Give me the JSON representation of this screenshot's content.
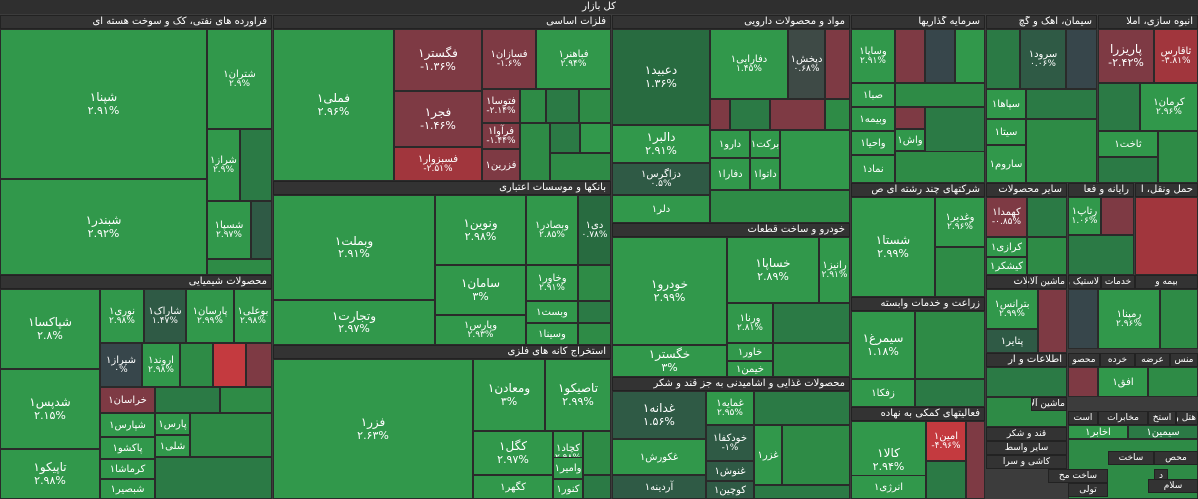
{
  "header_title": "کل بازار",
  "colors": {
    "g1": "#2e8b46",
    "g2": "#31984b",
    "g3": "#2b7a45",
    "g4": "#286b40",
    "dk": "#2f5a45",
    "m": "#3e4a46",
    "r1": "#7e3a44",
    "r2": "#a1363d",
    "r3": "#c43a3f",
    "gr": "#37464b"
  },
  "sections": [
    {
      "id": "oil",
      "label": "فراورده های نفتی، کک و سوخت هسته ای"
    },
    {
      "id": "metals",
      "label": "فلزات اساسی"
    },
    {
      "id": "pharma",
      "label": "مواد و محصولات دارویی"
    },
    {
      "id": "invest",
      "label": "سرمایه گذاریها"
    },
    {
      "id": "cement",
      "label": "سیمان، آهک و گچ"
    },
    {
      "id": "construct",
      "label": "انبوه سازی، املا"
    },
    {
      "id": "banks",
      "label": "بانکها و موسسات اعتباری"
    },
    {
      "id": "multi",
      "label": "شرکتهای چند رشته ای ص"
    },
    {
      "id": "other",
      "label": "سایر محصولات"
    },
    {
      "id": "it",
      "label": "رایانه و فعا"
    },
    {
      "id": "transport",
      "label": "حمل ونقل، ا"
    },
    {
      "id": "auto",
      "label": "خودرو و ساخت قطعات"
    },
    {
      "id": "chem",
      "label": "محصولات شیمیایی"
    },
    {
      "id": "agri",
      "label": "زراعت و خدمات وابسته"
    },
    {
      "id": "machine",
      "label": "ماشین آلات"
    },
    {
      "id": "mining",
      "label": "استخراج کانه های فلزی"
    },
    {
      "id": "food",
      "label": "محصولات غذایی و آشامیدنی به جز قند و شکر"
    },
    {
      "id": "info",
      "label": "اطلاعات و ار"
    },
    {
      "id": "finance",
      "label": "فعالیتهای کمکی به نهاده"
    }
  ],
  "cells": [
    {
      "id": "shpna",
      "name": "شپنا۱",
      "pct": "۲.۹۱%"
    },
    {
      "id": "shtran",
      "name": "شتران۱",
      "pct": "۲.۹%"
    },
    {
      "id": "shiraz",
      "name": "شراز۱",
      "pct": "۲.۹%"
    },
    {
      "id": "shbndr",
      "name": "شبندر۱",
      "pct": "۲.۹۲%"
    },
    {
      "id": "shsepa",
      "name": "شسپا۱",
      "pct": "۲.۹۷%"
    },
    {
      "id": "fmli",
      "name": "فملی۱",
      "pct": "۲.۹۶%"
    },
    {
      "id": "fgstr",
      "name": "فگستر۱",
      "pct": "-۱.۳۶%"
    },
    {
      "id": "fsazan",
      "name": "فسازان۱",
      "pct": "-۱.۶%"
    },
    {
      "id": "fbahonar",
      "name": "فباهنر۱",
      "pct": "۲.۹۴%"
    },
    {
      "id": "fjr",
      "name": "فجر۱",
      "pct": "-۱.۴۶%"
    },
    {
      "id": "ftosa",
      "name": "فتوسا۱",
      "pct": "-۲.۱۴%"
    },
    {
      "id": "farf",
      "name": "فرآوا۱",
      "pct": "-۱.۴۴%"
    },
    {
      "id": "fsbzvar",
      "name": "فسبزوار۱",
      "pct": "-۲.۵۱%"
    },
    {
      "id": "fzrin",
      "name": "فزرین۱",
      "pct": ""
    },
    {
      "id": "dabid",
      "name": "دعبید۱",
      "pct": "۱.۳۶%"
    },
    {
      "id": "dfarabi",
      "name": "دفارابی۱",
      "pct": "۱.۴۵%"
    },
    {
      "id": "dpakhsh",
      "name": "دپخش۱",
      "pct": "۰.۶۸%"
    },
    {
      "id": "dalbr",
      "name": "دالبر۱",
      "pct": "۲.۹۱%"
    },
    {
      "id": "darou",
      "name": "دارو۱",
      "pct": ""
    },
    {
      "id": "barakat",
      "name": "برکت۱",
      "pct": ""
    },
    {
      "id": "dzagros",
      "name": "دزاگرس۱",
      "pct": "۰.۵%"
    },
    {
      "id": "dfara",
      "name": "دفارا۱",
      "pct": ""
    },
    {
      "id": "dlra",
      "name": "دلر۱",
      "pct": ""
    },
    {
      "id": "dtoli",
      "name": "داتوا۱",
      "pct": ""
    },
    {
      "id": "vsapa",
      "name": "وساپا۱",
      "pct": "۲.۹۱%"
    },
    {
      "id": "sba",
      "name": "صبا۱",
      "pct": ""
    },
    {
      "id": "vbime",
      "name": "وبیمه۱",
      "pct": ""
    },
    {
      "id": "vahia",
      "name": "واحیا۱",
      "pct": ""
    },
    {
      "id": "vash",
      "name": "واش۱",
      "pct": ""
    },
    {
      "id": "nmad",
      "name": "نماد۱",
      "pct": ""
    },
    {
      "id": "srood",
      "name": "سرود۱",
      "pct": "۰.۰۶%"
    },
    {
      "id": "spaha",
      "name": "سپاها۱",
      "pct": ""
    },
    {
      "id": "sita",
      "name": "سیتا۱",
      "pct": ""
    },
    {
      "id": "sarom",
      "name": "ساروم۱",
      "pct": ""
    },
    {
      "id": "parizra",
      "name": "پاریزرا",
      "pct": "-۲.۴۲%"
    },
    {
      "id": "sarom2",
      "name": "ثاقارس",
      "pct": "-۳.۸۱%"
    },
    {
      "id": "karman",
      "name": "کرمان۱",
      "pct": "۲.۹۶%"
    },
    {
      "id": "thakht",
      "name": "ثاخت۱",
      "pct": ""
    },
    {
      "id": "vbmlt",
      "name": "وبملت۱",
      "pct": "۲.۹۱%"
    },
    {
      "id": "vnovin",
      "name": "ونوین۱",
      "pct": "۲.۹۸%"
    },
    {
      "id": "vspdar",
      "name": "وبصادر۱",
      "pct": "۲.۸۵%"
    },
    {
      "id": "dey",
      "name": "دی۱",
      "pct": "۰.۷۸%"
    },
    {
      "id": "vkhavr",
      "name": "وخاور۱",
      "pct": "۲.۹۱%"
    },
    {
      "id": "saman",
      "name": "سامان۱",
      "pct": "۳%"
    },
    {
      "id": "vbst",
      "name": "وبست۱",
      "pct": ""
    },
    {
      "id": "vtjart",
      "name": "وتجارت۱",
      "pct": "۲.۹۷%"
    },
    {
      "id": "vpars",
      "name": "وپارس۱",
      "pct": "۲.۹۳%"
    },
    {
      "id": "vsina",
      "name": "وسینا۱",
      "pct": ""
    },
    {
      "id": "shstaa",
      "name": "شستا۱",
      "pct": "۲.۹۹%"
    },
    {
      "id": "vghadir",
      "name": "وغدیر۱",
      "pct": "۲.۹۶%"
    },
    {
      "id": "khmda",
      "name": "کهمدا۱",
      "pct": "-۰.۸۵%"
    },
    {
      "id": "krazi",
      "name": "کرازی۱",
      "pct": ""
    },
    {
      "id": "kshkr",
      "name": "کیشکر۱",
      "pct": ""
    },
    {
      "id": "rtap",
      "name": "رتاپ۱",
      "pct": "۱.۰۶%"
    },
    {
      "id": "khodro",
      "name": "خودرو۱",
      "pct": "۲.۹۹%"
    },
    {
      "id": "khsapa",
      "name": "خساپا۱",
      "pct": "۲.۸۹%"
    },
    {
      "id": "ranji",
      "name": "رانیز۱",
      "pct": "۲.۹۱%"
    },
    {
      "id": "vrna",
      "name": "ورنا۱",
      "pct": "۲.۸۱%"
    },
    {
      "id": "khavr",
      "name": "خاور۱",
      "pct": ""
    },
    {
      "id": "khimn",
      "name": "خیمن۱",
      "pct": ""
    },
    {
      "id": "khgstr",
      "name": "خگستر۱",
      "pct": "۳%"
    },
    {
      "id": "shpksa",
      "name": "شپاکسا۱",
      "pct": "۲.۸%"
    },
    {
      "id": "nori",
      "name": "نوری۱",
      "pct": "۲.۹۸%"
    },
    {
      "id": "sharak",
      "name": "شاراک۱",
      "pct": "۱.۴۷%"
    },
    {
      "id": "parsan",
      "name": "پارسان۱",
      "pct": "۲.۹۹%"
    },
    {
      "id": "boali",
      "name": "بوعلی۱",
      "pct": "۲.۹۸%"
    },
    {
      "id": "shiraz2",
      "name": "شیراز۱",
      "pct": "۰%"
    },
    {
      "id": "arvand",
      "name": "اروند۱",
      "pct": "۲.۹۸%"
    },
    {
      "id": "shdps",
      "name": "شدپس۱",
      "pct": "۲.۱۵%"
    },
    {
      "id": "khorasan",
      "name": "خراسان۱",
      "pct": ""
    },
    {
      "id": "pars",
      "name": "پارس۱",
      "pct": ""
    },
    {
      "id": "shpars",
      "name": "شپارس۱",
      "pct": ""
    },
    {
      "id": "shli",
      "name": "شلی۱",
      "pct": ""
    },
    {
      "id": "tapiko",
      "name": "تاپیکو۱",
      "pct": "۲.۹۸%"
    },
    {
      "id": "pakhsho",
      "name": "پاکشو۱",
      "pct": ""
    },
    {
      "id": "krmasha",
      "name": "کرماشا۱",
      "pct": ""
    },
    {
      "id": "shbsir",
      "name": "شبصیر۱",
      "pct": ""
    },
    {
      "id": "btranes",
      "name": "بترانس۱",
      "pct": "۲.۹۹%"
    },
    {
      "id": "ptair",
      "name": "پتایر۱",
      "pct": ""
    },
    {
      "id": "rmpna",
      "name": "رمپنا۱",
      "pct": "۲.۹۶%"
    },
    {
      "id": "simorgh",
      "name": "سیمرغ۱",
      "pct": "۱.۱۸%"
    },
    {
      "id": "zfka",
      "name": "زفکا۱",
      "pct": ""
    },
    {
      "id": "fzra",
      "name": "فزر۱",
      "pct": "۲.۶۳%"
    },
    {
      "id": "vmadn",
      "name": "ومعادن۱",
      "pct": "۳%"
    },
    {
      "id": "tpsiko",
      "name": "تاصیکو۱",
      "pct": "۲.۹۹%"
    },
    {
      "id": "kgl",
      "name": "کگل۱",
      "pct": "۲.۹۷%"
    },
    {
      "id": "kchad",
      "name": "کچاد۱",
      "pct": "۲.۹۸%"
    },
    {
      "id": "kghr",
      "name": "کگهر۱",
      "pct": ""
    },
    {
      "id": "vamir",
      "name": "وامیر۱",
      "pct": ""
    },
    {
      "id": "knor",
      "name": "کنور۱",
      "pct": ""
    },
    {
      "id": "ghadane",
      "name": "غدانه۱",
      "pct": "۱.۵۶%"
    },
    {
      "id": "ghmaye",
      "name": "غمایه۱",
      "pct": "۲.۹۵%"
    },
    {
      "id": "khodka",
      "name": "خودکفا۱",
      "pct": "-۱%"
    },
    {
      "id": "ghkorsh",
      "name": "غکورش۱",
      "pct": ""
    },
    {
      "id": "ghnosh",
      "name": "غنوش۱",
      "pct": ""
    },
    {
      "id": "ghzr",
      "name": "غزر۱",
      "pct": ""
    },
    {
      "id": "ardine",
      "name": "آردینه۱",
      "pct": ""
    },
    {
      "id": "kochin",
      "name": "کوچین۱",
      "pct": ""
    },
    {
      "id": "kala",
      "name": "کالا۱",
      "pct": "۲.۹۴%"
    },
    {
      "id": "amin",
      "name": "امین۱",
      "pct": "-۴.۹۶%"
    },
    {
      "id": "anrzhi",
      "name": "انرژی۱",
      "pct": ""
    },
    {
      "id": "afgh",
      "name": "افق۱",
      "pct": ""
    },
    {
      "id": "akhabr",
      "name": "اخابر۱",
      "pct": ""
    },
    {
      "id": "sparsh",
      "name": "سیمین۱",
      "pct": ""
    }
  ],
  "mini_labels": [
    {
      "id": "bime",
      "text": "بیمه و"
    },
    {
      "id": "khadamat",
      "text": "خدمات"
    },
    {
      "id": "lastik",
      "text": "لاستیک و"
    },
    {
      "id": "mashin",
      "text": "ماشین آلات"
    },
    {
      "id": "mansour",
      "text": "منس"
    },
    {
      "id": "arze",
      "text": "عرضه"
    },
    {
      "id": "kharde",
      "text": "خرده"
    },
    {
      "id": "mahsor",
      "text": "محصو"
    },
    {
      "id": "mashin2",
      "text": "ماشین آلات"
    },
    {
      "id": "ghand",
      "text": "قند و شکر"
    },
    {
      "id": "saier",
      "text": "سایر واسط"
    },
    {
      "id": "kashi",
      "text": "کاشی و سرا"
    },
    {
      "id": "mkhabrat",
      "text": "مخابرات"
    },
    {
      "id": "astkh",
      "text": "استخ"
    },
    {
      "id": "hotel",
      "text": "هتل و"
    },
    {
      "id": "ast",
      "text": "است"
    },
    {
      "id": "sakhtmah",
      "text": "ساخت مح"
    },
    {
      "id": "sakht",
      "text": "ساخت"
    },
    {
      "id": "mahs",
      "text": "محص"
    },
    {
      "id": "d",
      "text": "د"
    },
    {
      "id": "eslam",
      "text": "سلام"
    },
    {
      "id": "toli",
      "text": "تولی"
    }
  ]
}
